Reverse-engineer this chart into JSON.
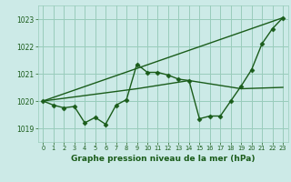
{
  "background_color": "#cceae7",
  "grid_color": "#99ccbb",
  "line_color": "#1a5c1a",
  "title": "Graphe pression niveau de la mer (hPa)",
  "xlim": [
    -0.5,
    23.5
  ],
  "ylim": [
    1018.5,
    1023.5
  ],
  "yticks": [
    1019,
    1020,
    1021,
    1022,
    1023
  ],
  "xticks": [
    0,
    1,
    2,
    3,
    4,
    5,
    6,
    7,
    8,
    9,
    10,
    11,
    12,
    13,
    14,
    15,
    16,
    17,
    18,
    19,
    20,
    21,
    22,
    23
  ],
  "main_x": [
    0,
    1,
    2,
    3,
    4,
    5,
    6,
    7,
    8,
    9,
    10,
    11,
    12,
    13,
    14,
    15,
    16,
    17,
    18,
    19,
    20,
    21,
    22,
    23
  ],
  "main_y": [
    1020.0,
    1019.85,
    1019.75,
    1019.8,
    1019.2,
    1019.4,
    1019.15,
    1019.85,
    1020.05,
    1021.35,
    1021.05,
    1021.05,
    1020.95,
    1020.8,
    1020.75,
    1019.35,
    1019.45,
    1019.45,
    1020.0,
    1020.55,
    1021.15,
    1022.1,
    1022.65,
    1023.05
  ],
  "line2_x": [
    0,
    23
  ],
  "line2_y": [
    1020.0,
    1023.05
  ],
  "line3_x": [
    0,
    9,
    14,
    19,
    23
  ],
  "line3_y": [
    1020.0,
    1020.45,
    1020.75,
    1020.45,
    1020.5
  ]
}
